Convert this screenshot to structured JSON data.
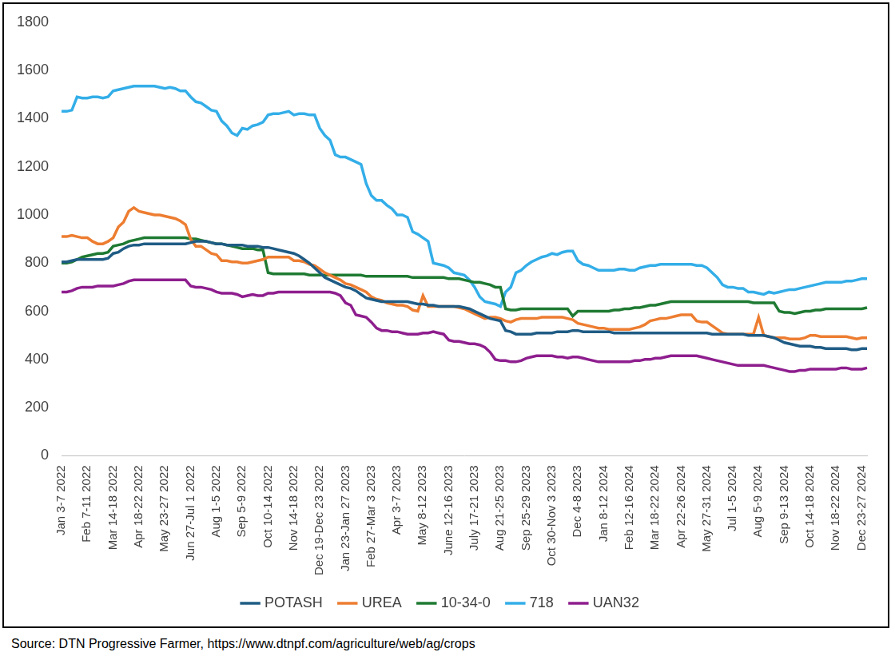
{
  "chart_data": {
    "type": "line",
    "categories": [
      "Jan 3-7 2022",
      null,
      null,
      null,
      null,
      "Feb 7-11 2022",
      null,
      null,
      null,
      null,
      "Mar 14-18 2022",
      null,
      null,
      null,
      null,
      "Apr 18-22 2022",
      null,
      null,
      null,
      null,
      "May 23-27 2022",
      null,
      null,
      null,
      null,
      "Jun 27-Jul 1 2022",
      null,
      null,
      null,
      null,
      "Aug 1-5 2022",
      null,
      null,
      null,
      null,
      "Sep 5-9 2022",
      null,
      null,
      null,
      null,
      "Oct 10-14 2022",
      null,
      null,
      null,
      null,
      "Nov 14-18 2022",
      null,
      null,
      null,
      null,
      "Dec 19-Dec 23 2022",
      null,
      null,
      null,
      null,
      "Jan 23-Jan 27 2023",
      null,
      null,
      null,
      null,
      "Feb 27-Mar 3 2023",
      null,
      null,
      null,
      null,
      "Apr 3-7 2023",
      null,
      null,
      null,
      null,
      "May 8-12 2023",
      null,
      null,
      null,
      null,
      "June 12-16 2023",
      null,
      null,
      null,
      null,
      "July 17-21 2023",
      null,
      null,
      null,
      null,
      "Aug 21-25 2023",
      null,
      null,
      null,
      null,
      "Sep 25-29 2023",
      null,
      null,
      null,
      null,
      "Oct 30-Nov 3 2023",
      null,
      null,
      null,
      null,
      "Dec 4-8 2023",
      null,
      null,
      null,
      null,
      "Jan 8-12 2024",
      null,
      null,
      null,
      null,
      "Feb 12-16 2024",
      null,
      null,
      null,
      null,
      "Mar 18-22 2024",
      null,
      null,
      null,
      null,
      "Apr 22-26 2024",
      null,
      null,
      null,
      null,
      "May 27-31 2024",
      null,
      null,
      null,
      null,
      "Jul 1-5 2024",
      null,
      null,
      null,
      null,
      "Aug 5-9 2024",
      null,
      null,
      null,
      null,
      "Sep 9-13 2024",
      null,
      null,
      null,
      null,
      "Oct 14-18 2024",
      null,
      null,
      null,
      null,
      "Nov 18-22 2024",
      null,
      null,
      null,
      null,
      "Dec 23-27 2024",
      null
    ],
    "series": [
      {
        "name": "POTASH",
        "color": "#1F5C85",
        "values": [
          805,
          805,
          810,
          815,
          815,
          815,
          815,
          815,
          815,
          820,
          840,
          845,
          860,
          870,
          875,
          875,
          880,
          880,
          880,
          880,
          880,
          880,
          880,
          880,
          880,
          885,
          890,
          890,
          890,
          885,
          880,
          880,
          875,
          875,
          875,
          875,
          870,
          870,
          870,
          865,
          865,
          860,
          855,
          850,
          845,
          840,
          830,
          815,
          800,
          780,
          760,
          740,
          730,
          720,
          710,
          700,
          695,
          685,
          670,
          655,
          650,
          645,
          640,
          640,
          640,
          640,
          640,
          640,
          635,
          630,
          630,
          625,
          625,
          620,
          620,
          620,
          620,
          620,
          615,
          610,
          600,
          590,
          580,
          570,
          565,
          560,
          520,
          515,
          505,
          505,
          505,
          505,
          510,
          510,
          510,
          510,
          515,
          515,
          515,
          520,
          520,
          515,
          515,
          515,
          515,
          515,
          515,
          510,
          510,
          510,
          510,
          510,
          510,
          510,
          510,
          510,
          510,
          510,
          510,
          510,
          510,
          510,
          510,
          510,
          510,
          510,
          505,
          505,
          505,
          505,
          505,
          505,
          505,
          500,
          500,
          500,
          500,
          495,
          490,
          480,
          470,
          465,
          460,
          455,
          455,
          455,
          450,
          450,
          445,
          445,
          445,
          445,
          445,
          440,
          440,
          445,
          445
        ]
      },
      {
        "name": "UREA",
        "color": "#ED7D31",
        "values": [
          910,
          910,
          915,
          910,
          905,
          905,
          890,
          880,
          880,
          890,
          905,
          950,
          970,
          1015,
          1030,
          1015,
          1010,
          1005,
          1000,
          1000,
          995,
          990,
          985,
          975,
          960,
          900,
          870,
          870,
          855,
          840,
          835,
          810,
          810,
          805,
          805,
          800,
          800,
          805,
          810,
          815,
          825,
          825,
          825,
          825,
          825,
          810,
          810,
          805,
          795,
          790,
          775,
          760,
          750,
          740,
          730,
          715,
          710,
          700,
          690,
          680,
          660,
          650,
          645,
          635,
          630,
          625,
          625,
          620,
          605,
          600,
          665,
          620,
          620,
          620,
          620,
          620,
          620,
          615,
          610,
          600,
          590,
          580,
          570,
          575,
          575,
          570,
          560,
          555,
          565,
          570,
          570,
          570,
          570,
          575,
          575,
          575,
          575,
          575,
          570,
          565,
          550,
          545,
          540,
          535,
          530,
          530,
          525,
          525,
          525,
          525,
          525,
          530,
          535,
          545,
          560,
          565,
          570,
          570,
          575,
          580,
          585,
          585,
          585,
          560,
          555,
          555,
          540,
          525,
          510,
          505,
          505,
          505,
          505,
          505,
          505,
          575,
          500,
          495,
          490,
          490,
          490,
          485,
          485,
          485,
          490,
          500,
          500,
          495,
          495,
          495,
          495,
          495,
          495,
          490,
          485,
          490,
          490
        ]
      },
      {
        "name": "10-34-0",
        "color": "#1E7A32",
        "values": [
          800,
          800,
          805,
          815,
          825,
          830,
          835,
          840,
          840,
          845,
          870,
          875,
          880,
          890,
          895,
          900,
          905,
          905,
          905,
          905,
          905,
          905,
          905,
          905,
          905,
          900,
          900,
          895,
          890,
          885,
          880,
          880,
          875,
          870,
          865,
          860,
          860,
          860,
          855,
          855,
          760,
          755,
          755,
          755,
          755,
          755,
          755,
          755,
          750,
          750,
          750,
          750,
          750,
          750,
          750,
          750,
          750,
          750,
          750,
          745,
          745,
          745,
          745,
          745,
          745,
          745,
          745,
          745,
          740,
          740,
          740,
          740,
          740,
          740,
          740,
          735,
          735,
          735,
          730,
          725,
          720,
          720,
          715,
          710,
          700,
          700,
          610,
          605,
          605,
          610,
          610,
          610,
          610,
          610,
          610,
          610,
          610,
          610,
          610,
          580,
          600,
          600,
          600,
          600,
          600,
          600,
          600,
          605,
          605,
          610,
          610,
          615,
          615,
          620,
          625,
          625,
          630,
          635,
          640,
          640,
          640,
          640,
          640,
          640,
          640,
          640,
          640,
          640,
          640,
          640,
          640,
          640,
          640,
          640,
          635,
          635,
          635,
          635,
          635,
          600,
          595,
          595,
          590,
          595,
          600,
          600,
          605,
          605,
          610,
          610,
          610,
          610,
          610,
          610,
          610,
          610,
          615
        ]
      },
      {
        "name": "718",
        "color": "#33AEE8",
        "values": [
          1430,
          1430,
          1435,
          1490,
          1485,
          1485,
          1490,
          1490,
          1485,
          1490,
          1515,
          1520,
          1525,
          1530,
          1535,
          1535,
          1535,
          1535,
          1535,
          1530,
          1525,
          1530,
          1525,
          1515,
          1515,
          1490,
          1470,
          1465,
          1450,
          1435,
          1430,
          1390,
          1370,
          1340,
          1330,
          1360,
          1355,
          1370,
          1375,
          1385,
          1415,
          1420,
          1420,
          1425,
          1430,
          1415,
          1420,
          1420,
          1415,
          1415,
          1360,
          1330,
          1310,
          1250,
          1240,
          1240,
          1230,
          1220,
          1210,
          1130,
          1080,
          1060,
          1060,
          1040,
          1025,
          1000,
          1000,
          990,
          930,
          920,
          905,
          890,
          800,
          795,
          790,
          780,
          760,
          755,
          750,
          730,
          700,
          660,
          640,
          635,
          630,
          620,
          680,
          700,
          760,
          770,
          790,
          805,
          815,
          825,
          830,
          840,
          835,
          845,
          850,
          850,
          810,
          795,
          790,
          780,
          770,
          770,
          770,
          770,
          775,
          775,
          770,
          770,
          780,
          785,
          790,
          790,
          795,
          795,
          795,
          795,
          795,
          795,
          795,
          790,
          790,
          780,
          760,
          740,
          710,
          700,
          700,
          695,
          695,
          680,
          680,
          675,
          670,
          680,
          675,
          680,
          685,
          690,
          690,
          695,
          700,
          705,
          710,
          715,
          720,
          720,
          720,
          720,
          725,
          725,
          730,
          735,
          735
        ]
      },
      {
        "name": "UAN32",
        "color": "#8E1E8E",
        "values": [
          680,
          680,
          685,
          695,
          700,
          700,
          700,
          705,
          705,
          705,
          705,
          710,
          715,
          725,
          730,
          730,
          730,
          730,
          730,
          730,
          730,
          730,
          730,
          730,
          730,
          705,
          700,
          700,
          695,
          690,
          680,
          675,
          675,
          675,
          670,
          660,
          665,
          670,
          665,
          665,
          675,
          675,
          680,
          680,
          680,
          680,
          680,
          680,
          680,
          680,
          680,
          680,
          680,
          675,
          665,
          635,
          625,
          585,
          580,
          575,
          555,
          530,
          520,
          520,
          515,
          515,
          510,
          505,
          505,
          505,
          510,
          510,
          515,
          510,
          505,
          480,
          475,
          475,
          470,
          465,
          465,
          460,
          450,
          430,
          400,
          395,
          395,
          390,
          390,
          395,
          405,
          410,
          415,
          415,
          415,
          415,
          410,
          410,
          405,
          410,
          410,
          405,
          400,
          395,
          390,
          390,
          390,
          390,
          390,
          390,
          390,
          395,
          395,
          400,
          400,
          405,
          405,
          410,
          415,
          415,
          415,
          415,
          415,
          415,
          410,
          405,
          400,
          395,
          390,
          385,
          380,
          375,
          375,
          375,
          375,
          375,
          375,
          370,
          365,
          360,
          355,
          350,
          350,
          355,
          355,
          360,
          360,
          360,
          360,
          360,
          360,
          365,
          365,
          360,
          360,
          360,
          365
        ]
      }
    ],
    "ylim": [
      0,
      1800
    ],
    "yticks": [
      0,
      200,
      400,
      600,
      800,
      1000,
      1200,
      1400,
      1600,
      1800
    ],
    "grid": false,
    "legend": "bottom",
    "marker": "none",
    "annotations": [
      "Source: DTN Progressive Farmer, https://www.dtnpf.com/agriculture/web/ag/crops"
    ]
  }
}
